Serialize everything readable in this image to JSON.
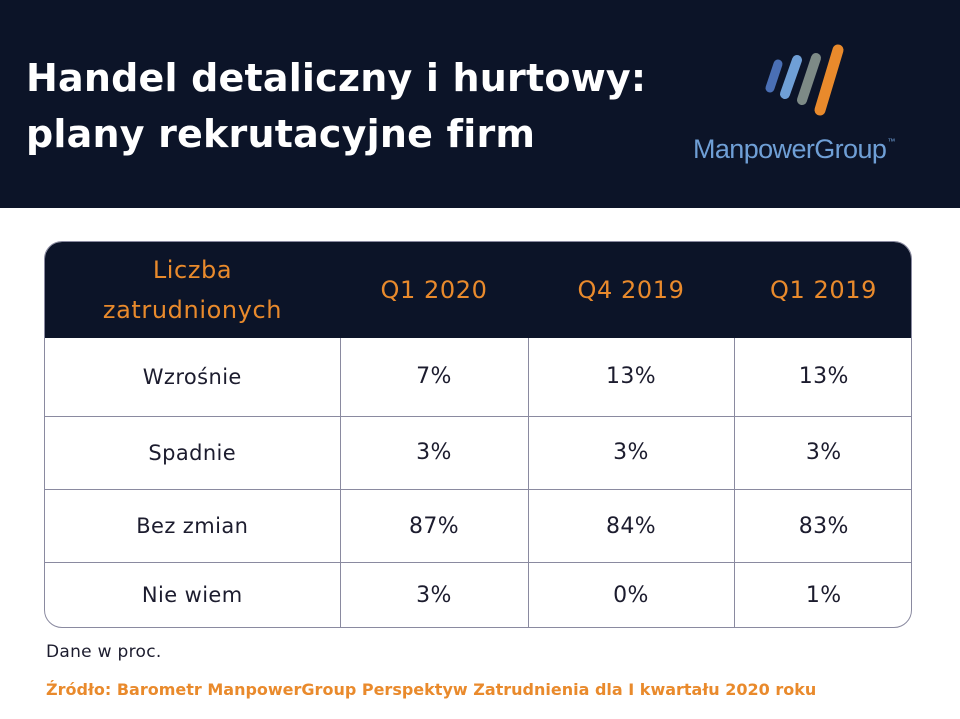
{
  "header": {
    "title_line1": "Handel detaliczny i hurtowy:",
    "title_line2": "plany rekrutacyjne firm",
    "logo_text": "ManpowerGroup",
    "logo_tm": "™",
    "colors": {
      "background": "#0c1428",
      "accent": "#e98a2c",
      "logo_blue": "#6f9fd6"
    }
  },
  "chart_data": {
    "type": "table",
    "header_first_line1": "Liczba",
    "header_first_line2": "zatrudnionych",
    "columns": [
      "Q1 2020",
      "Q4 2019",
      "Q1 2019"
    ],
    "rows": [
      {
        "label": "Wzrośnie",
        "values": [
          "7%",
          "13%",
          "13%"
        ]
      },
      {
        "label": "Spadnie",
        "values": [
          "3%",
          "3%",
          "3%"
        ]
      },
      {
        "label": "Bez zmian",
        "values": [
          "87%",
          "84%",
          "83%"
        ]
      },
      {
        "label": "Nie wiem",
        "values": [
          "3%",
          "0%",
          "1%"
        ]
      }
    ]
  },
  "footer": {
    "note": "Dane w proc.",
    "source": "Źródło: Barometr ManpowerGroup Perspektyw Zatrudnienia dla I kwartału 2020 roku"
  }
}
